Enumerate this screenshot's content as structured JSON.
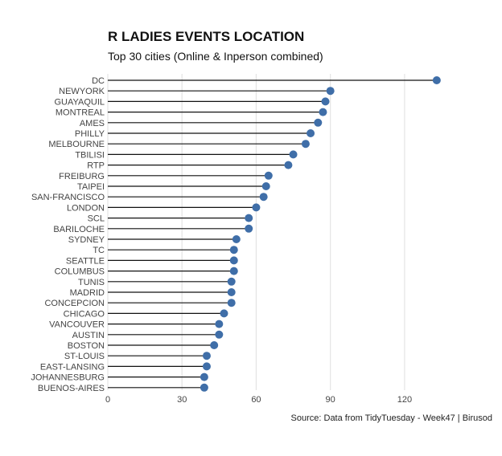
{
  "title": "R LADIES EVENTS LOCATION",
  "subtitle": "Top 30 cities (Online & Inperson combined)",
  "caption": "Source: Data from TidyTuesday - Week47 | Birusod",
  "colors": {
    "point": "#3f6ea8",
    "segment": "#111111",
    "grid": "#e4e4e4",
    "text": "#444444"
  },
  "chart_data": {
    "type": "lollipop",
    "title": "R LADIES EVENTS LOCATION",
    "subtitle": "Top 30 cities (Online & Inperson combined)",
    "xlabel": "",
    "ylabel": "",
    "xlim": [
      0,
      135
    ],
    "xticks": [
      0,
      30,
      60,
      90,
      120
    ],
    "grid": "vertical major",
    "categories": [
      "DC",
      "NEWYORK",
      "GUAYAQUIL",
      "MONTREAL",
      "AMES",
      "PHILLY",
      "MELBOURNE",
      "TBILISI",
      "RTP",
      "FREIBURG",
      "TAIPEI",
      "SAN-FRANCISCO",
      "LONDON",
      "SCL",
      "BARILOCHE",
      "SYDNEY",
      "TC",
      "SEATTLE",
      "COLUMBUS",
      "TUNIS",
      "MADRID",
      "CONCEPCION",
      "CHICAGO",
      "VANCOUVER",
      "AUSTIN",
      "BOSTON",
      "ST-LOUIS",
      "EAST-LANSING",
      "JOHANNESBURG",
      "BUENOS-AIRES"
    ],
    "values": [
      133,
      90,
      88,
      87,
      85,
      82,
      80,
      75,
      73,
      65,
      64,
      63,
      60,
      57,
      57,
      52,
      51,
      51,
      51,
      50,
      50,
      50,
      47,
      45,
      45,
      43,
      40,
      40,
      39,
      39
    ]
  }
}
